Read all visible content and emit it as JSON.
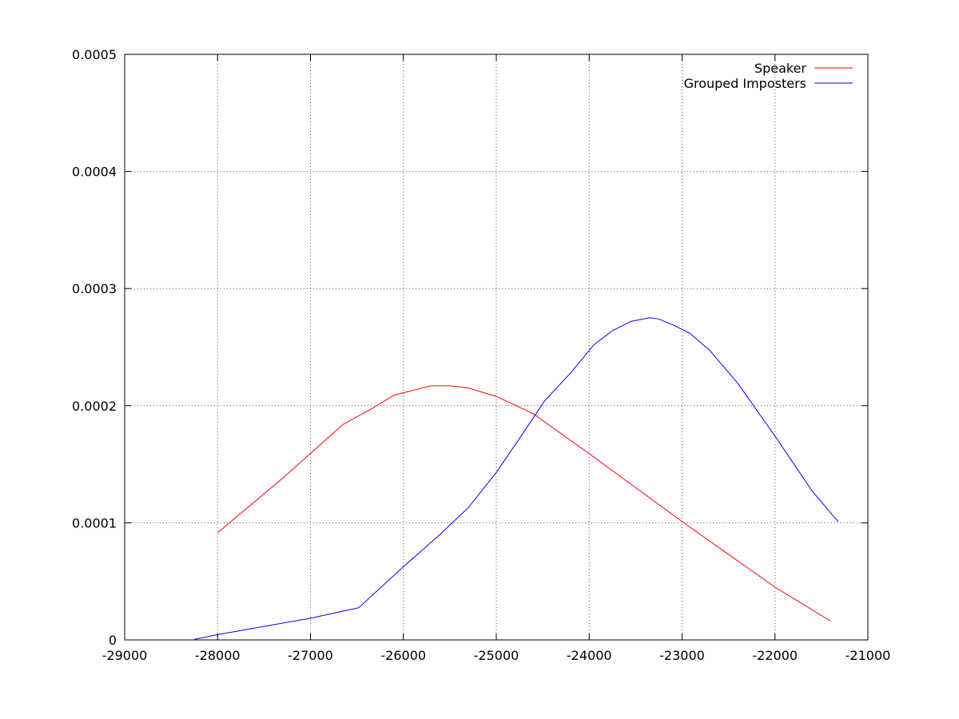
{
  "chart_data": {
    "type": "line",
    "title": "",
    "xlabel": "",
    "ylabel": "",
    "xlim": [
      -29000,
      -21000
    ],
    "ylim": [
      0,
      0.0005
    ],
    "x_ticks": [
      -29000,
      -28000,
      -27000,
      -26000,
      -25000,
      -24000,
      -23000,
      -22000,
      -21000
    ],
    "x_tick_labels": [
      "-29000",
      "-28000",
      "-27000",
      "-26000",
      "-25000",
      "-24000",
      "-23000",
      "-22000",
      "-21000"
    ],
    "y_ticks": [
      0,
      0.0001,
      0.0002,
      0.0003,
      0.0004,
      0.0005
    ],
    "y_tick_labels": [
      "0",
      "0.0001",
      "0.0002",
      "0.0003",
      "0.0004",
      "0.0005"
    ],
    "grid": true,
    "legend_position": "top-right",
    "series": [
      {
        "name": "Speaker",
        "color": "#ff0000",
        "points": [
          [
            -28000,
            9.15e-05
          ],
          [
            -27300,
            0.000138
          ],
          [
            -26650,
            0.000184
          ],
          [
            -26350,
            0.000197
          ],
          [
            -26100,
            0.000209
          ],
          [
            -25900,
            0.000213
          ],
          [
            -25700,
            0.000217
          ],
          [
            -25500,
            0.000217
          ],
          [
            -25300,
            0.000215
          ],
          [
            -25000,
            0.000208
          ],
          [
            -24600,
            0.000193
          ],
          [
            -24000,
            0.000159
          ],
          [
            -23000,
            0.000101
          ],
          [
            -22000,
            4.5e-05
          ],
          [
            -21400,
            1.6e-05
          ]
        ]
      },
      {
        "name": "Grouped Imposters",
        "color": "#0000ff",
        "points": [
          [
            -28250,
            5e-07
          ],
          [
            -28000,
            4.5e-06
          ],
          [
            -27000,
            1.85e-05
          ],
          [
            -26480,
            2.75e-05
          ],
          [
            -26000,
            6.25e-05
          ],
          [
            -25600,
            9.05e-05
          ],
          [
            -25300,
            0.000113
          ],
          [
            -25000,
            0.000143
          ],
          [
            -24750,
            0.000172
          ],
          [
            -24480,
            0.000204
          ],
          [
            -24200,
            0.000228
          ],
          [
            -23950,
            0.000252
          ],
          [
            -23750,
            0.000264
          ],
          [
            -23550,
            0.000272
          ],
          [
            -23350,
            0.000275
          ],
          [
            -23250,
            0.000274
          ],
          [
            -23100,
            0.000269
          ],
          [
            -22920,
            0.000262
          ],
          [
            -22700,
            0.000247
          ],
          [
            -22400,
            0.000219
          ],
          [
            -22000,
            0.000174
          ],
          [
            -21600,
            0.000127
          ],
          [
            -21320,
            0.000101
          ]
        ]
      }
    ]
  }
}
